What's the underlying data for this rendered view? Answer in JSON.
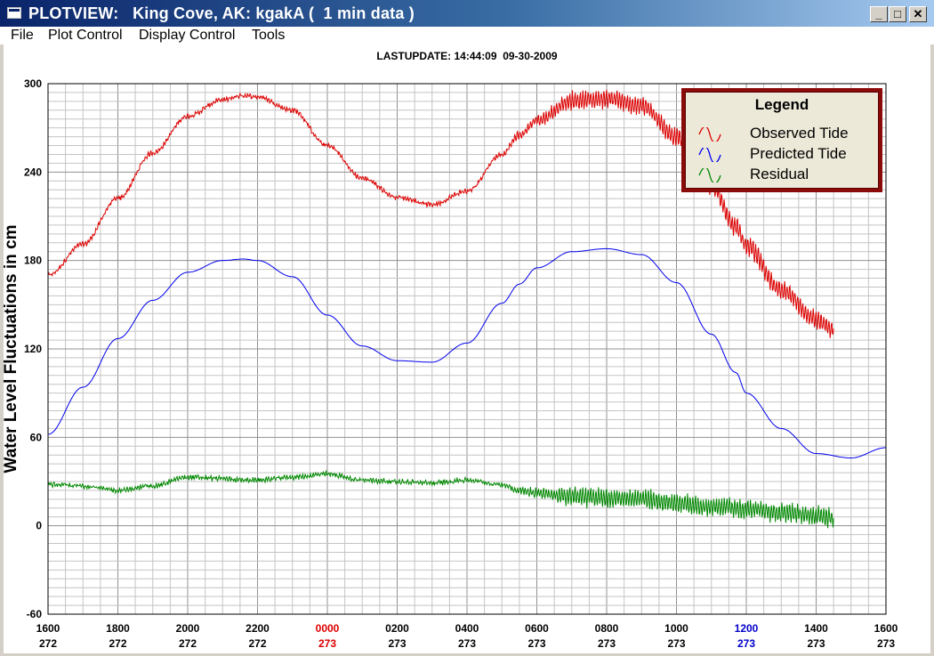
{
  "window": {
    "title": "PLOTVIEW:   King Cove, AK: kgakA (  1 min data )",
    "min_symbol": "_",
    "max_symbol": "□",
    "close_symbol": "✕"
  },
  "menu": {
    "items": [
      "File",
      "Plot Control",
      "Display Control",
      "Tools"
    ]
  },
  "header": {
    "lastupdate": "LASTUPDATE: 14:44:09  09-30-2009"
  },
  "colors": {
    "observed": "#dd0000",
    "predicted": "#0000ee",
    "residual": "#008800",
    "grid": "#a0a0a0",
    "tick_day_change": "#dd0000",
    "tick_noon": "#0000cc",
    "legend_border": "#8b0a0a"
  },
  "chart_data": {
    "type": "line",
    "ylabel": "Water Level Fluctuations in cm",
    "ylim": [
      -60,
      300
    ],
    "yticks": [
      "300",
      "240",
      "180",
      "120",
      "60",
      "0",
      "-60"
    ],
    "xlim": [
      0,
      24
    ],
    "xticks": [
      {
        "time": "1600",
        "day": "272",
        "color": "default"
      },
      {
        "time": "1800",
        "day": "272",
        "color": "default"
      },
      {
        "time": "2000",
        "day": "272",
        "color": "default"
      },
      {
        "time": "2200",
        "day": "272",
        "color": "default"
      },
      {
        "time": "0000",
        "day": "273",
        "color": "red"
      },
      {
        "time": "0200",
        "day": "273",
        "color": "default"
      },
      {
        "time": "0400",
        "day": "273",
        "color": "default"
      },
      {
        "time": "0600",
        "day": "273",
        "color": "default"
      },
      {
        "time": "0800",
        "day": "273",
        "color": "default"
      },
      {
        "time": "1000",
        "day": "273",
        "color": "default"
      },
      {
        "time": "1200",
        "day": "273",
        "color": "blue"
      },
      {
        "time": "1400",
        "day": "273",
        "color": "default"
      },
      {
        "time": "1600",
        "day": "273",
        "color": "default"
      }
    ],
    "grid": true,
    "legend": {
      "title": "Legend",
      "placement": "top-right",
      "entries": [
        "Observed Tide",
        "Predicted Tide",
        "Residual"
      ]
    },
    "series": [
      {
        "name": "Predicted Tide",
        "x": [
          0,
          1,
          2,
          3,
          4,
          5,
          5.6,
          6,
          7,
          8,
          9,
          10,
          11,
          12,
          13,
          13.5,
          14,
          15,
          16,
          17,
          18,
          19,
          19.7,
          20,
          21,
          22,
          23,
          24
        ],
        "values": [
          62,
          94,
          127,
          153,
          172,
          180,
          181,
          180,
          169,
          143,
          122,
          112,
          111,
          124,
          151,
          164,
          175,
          186,
          188,
          184,
          165,
          130,
          104,
          90,
          66,
          49,
          46,
          53
        ]
      },
      {
        "name": "Observed Tide",
        "x": [
          0,
          1,
          2,
          3,
          4,
          5,
          5.6,
          6,
          7,
          8,
          9,
          10,
          11,
          12,
          13,
          13.5,
          14,
          15,
          16,
          17,
          18,
          19,
          19.7,
          20,
          21,
          22,
          22.5
        ],
        "values": [
          170,
          191,
          222,
          253,
          278,
          289,
          292,
          291,
          282,
          258,
          236,
          223,
          218,
          227,
          252,
          265,
          275,
          288,
          290,
          285,
          264,
          231,
          203,
          190,
          160,
          140,
          133
        ]
      },
      {
        "name": "Residual",
        "x": [
          0,
          1,
          2,
          3,
          4,
          5,
          5.6,
          6,
          7,
          8,
          9,
          10,
          11,
          12,
          13,
          13.5,
          14,
          15,
          16,
          17,
          18,
          19,
          19.7,
          20,
          21,
          22,
          22.5
        ],
        "values": [
          28,
          27,
          24,
          27,
          33,
          32,
          31,
          31,
          33,
          35,
          31,
          30,
          29,
          31,
          28,
          24,
          22,
          20,
          19,
          18,
          15,
          13,
          12,
          11,
          9,
          7,
          6
        ]
      }
    ]
  }
}
